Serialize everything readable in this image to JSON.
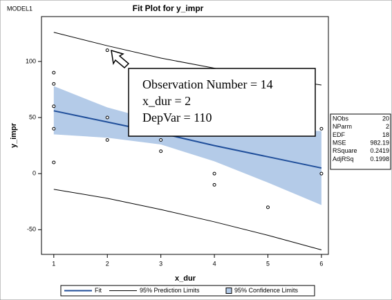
{
  "model_label": "MODEL1",
  "chart_data": {
    "type": "fit",
    "title": "Fit Plot for y_impr",
    "x_label": "x_dur",
    "y_label": "y_impr",
    "xlim": [
      0.77,
      6.13
    ],
    "ylim": [
      -72,
      140
    ],
    "xticks": [
      1,
      2,
      3,
      4,
      5,
      6
    ],
    "yticks": [
      -50,
      0,
      50,
      100
    ],
    "points": {
      "color": "#000000",
      "x": [
        1,
        1,
        1,
        1,
        1,
        2,
        2,
        2,
        3,
        3,
        4,
        4,
        5,
        6,
        6
      ],
      "y": [
        90,
        80,
        60,
        40,
        10,
        110,
        50,
        30,
        30,
        20,
        0,
        -10,
        -30,
        40,
        0
      ]
    },
    "x": [
      1,
      2,
      3,
      4,
      5,
      6
    ],
    "fit": {
      "name": "Fit",
      "color": "#1f4e9a",
      "values": [
        56,
        46,
        36,
        25,
        15,
        5
      ]
    },
    "prediction": {
      "name": "95% Prediction Limits",
      "color": "#000000",
      "upper": [
        126,
        114,
        103,
        94,
        86,
        79
      ],
      "lower": [
        -14,
        -22,
        -32,
        -43,
        -55,
        -68
      ]
    },
    "confidence": {
      "name": "95% Confidence Limits",
      "color": "#b4cbe8",
      "upper": [
        78,
        59,
        46,
        40,
        39,
        38
      ],
      "lower": [
        35,
        32,
        26,
        11,
        -8,
        -28
      ]
    },
    "annotation": [
      "Observation Number = 14",
      "x_dur = 2",
      "DepVar = 110"
    ],
    "stats": [
      {
        "label": "NObs",
        "value": 20
      },
      {
        "label": "NParm",
        "value": 2
      },
      {
        "label": "EDF",
        "value": 18
      },
      {
        "label": "MSE",
        "value": 982.19
      },
      {
        "label": "RSquare",
        "value": 0.2419
      },
      {
        "label": "AdjRSq",
        "value": 0.1998
      }
    ]
  }
}
